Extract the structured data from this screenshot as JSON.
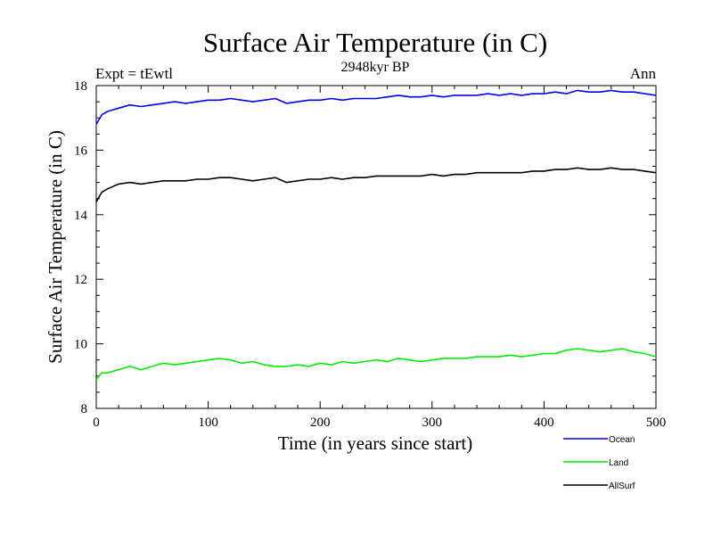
{
  "chart_data": {
    "type": "line",
    "title": "Surface Air Temperature (in C)",
    "subtitle": "2948kyr BP",
    "annotation_left": "Expt = tEwtl",
    "annotation_right": "Ann",
    "xlabel": "Time (in years since start)",
    "ylabel": "Surface Air Temperature (in C)",
    "xlim": [
      0,
      500
    ],
    "ylim": [
      8,
      18
    ],
    "xticks": [
      0,
      100,
      200,
      300,
      400,
      500
    ],
    "yticks": [
      8,
      10,
      12,
      14,
      16,
      18
    ],
    "legend_position": "bottom-right, below plot",
    "series": [
      {
        "name": "Ocean",
        "color": "#0000ee",
        "x": [
          0,
          5,
          10,
          20,
          30,
          40,
          50,
          60,
          70,
          80,
          90,
          100,
          110,
          120,
          130,
          140,
          150,
          160,
          170,
          180,
          190,
          200,
          210,
          220,
          230,
          240,
          250,
          260,
          270,
          280,
          290,
          300,
          310,
          320,
          330,
          340,
          350,
          360,
          370,
          380,
          390,
          400,
          410,
          420,
          430,
          440,
          450,
          460,
          470,
          480,
          490,
          500
        ],
        "values": [
          16.8,
          17.1,
          17.2,
          17.3,
          17.4,
          17.35,
          17.4,
          17.45,
          17.5,
          17.45,
          17.5,
          17.55,
          17.55,
          17.6,
          17.55,
          17.5,
          17.55,
          17.6,
          17.45,
          17.5,
          17.55,
          17.55,
          17.6,
          17.55,
          17.6,
          17.6,
          17.6,
          17.65,
          17.7,
          17.65,
          17.65,
          17.7,
          17.65,
          17.7,
          17.7,
          17.7,
          17.75,
          17.7,
          17.75,
          17.7,
          17.75,
          17.75,
          17.8,
          17.75,
          17.85,
          17.8,
          17.8,
          17.85,
          17.8,
          17.8,
          17.75,
          17.7
        ]
      },
      {
        "name": "Land",
        "color": "#00ee00",
        "x": [
          0,
          5,
          10,
          20,
          30,
          40,
          50,
          60,
          70,
          80,
          90,
          100,
          110,
          120,
          130,
          140,
          150,
          160,
          170,
          180,
          190,
          200,
          210,
          220,
          230,
          240,
          250,
          260,
          270,
          280,
          290,
          300,
          310,
          320,
          330,
          340,
          350,
          360,
          370,
          380,
          390,
          400,
          410,
          420,
          430,
          440,
          450,
          460,
          470,
          480,
          490,
          500
        ],
        "values": [
          8.9,
          9.1,
          9.1,
          9.2,
          9.3,
          9.2,
          9.3,
          9.4,
          9.35,
          9.4,
          9.45,
          9.5,
          9.55,
          9.5,
          9.4,
          9.45,
          9.35,
          9.3,
          9.3,
          9.35,
          9.3,
          9.4,
          9.35,
          9.45,
          9.4,
          9.45,
          9.5,
          9.45,
          9.55,
          9.5,
          9.45,
          9.5,
          9.55,
          9.55,
          9.55,
          9.6,
          9.6,
          9.6,
          9.65,
          9.6,
          9.65,
          9.7,
          9.7,
          9.8,
          9.85,
          9.8,
          9.75,
          9.8,
          9.85,
          9.75,
          9.7,
          9.6
        ]
      },
      {
        "name": "AllSurf",
        "color": "#000000",
        "x": [
          0,
          5,
          10,
          20,
          30,
          40,
          50,
          60,
          70,
          80,
          90,
          100,
          110,
          120,
          130,
          140,
          150,
          160,
          170,
          180,
          190,
          200,
          210,
          220,
          230,
          240,
          250,
          260,
          270,
          280,
          290,
          300,
          310,
          320,
          330,
          340,
          350,
          360,
          370,
          380,
          390,
          400,
          410,
          420,
          430,
          440,
          450,
          460,
          470,
          480,
          490,
          500
        ],
        "values": [
          14.4,
          14.7,
          14.8,
          14.95,
          15.0,
          14.95,
          15.0,
          15.05,
          15.05,
          15.05,
          15.1,
          15.1,
          15.15,
          15.15,
          15.1,
          15.05,
          15.1,
          15.15,
          15.0,
          15.05,
          15.1,
          15.1,
          15.15,
          15.1,
          15.15,
          15.15,
          15.2,
          15.2,
          15.2,
          15.2,
          15.2,
          15.25,
          15.2,
          15.25,
          15.25,
          15.3,
          15.3,
          15.3,
          15.3,
          15.3,
          15.35,
          15.35,
          15.4,
          15.4,
          15.45,
          15.4,
          15.4,
          15.45,
          15.4,
          15.4,
          15.35,
          15.3
        ]
      }
    ]
  }
}
